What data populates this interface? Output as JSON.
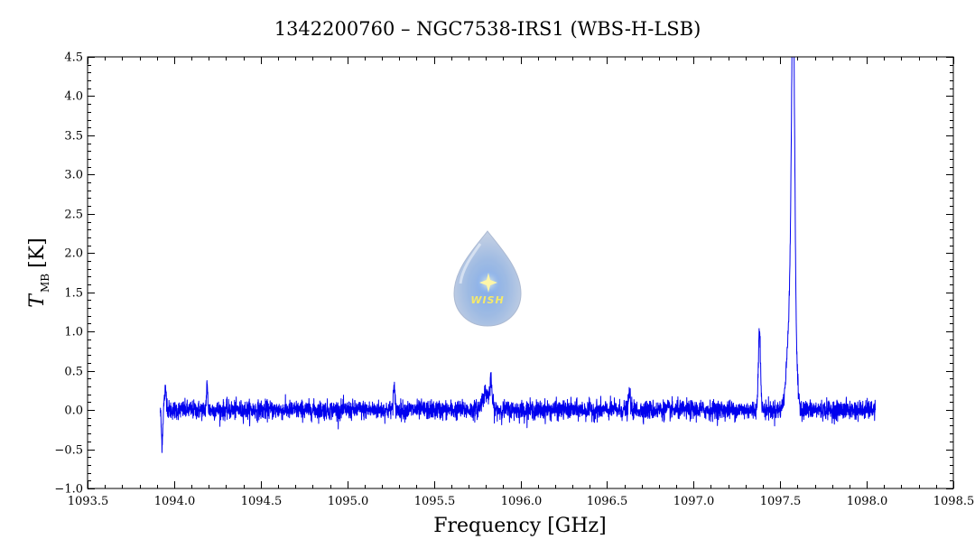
{
  "chart_data": {
    "type": "line",
    "title": "1342200760 – NGC7538-IRS1 (WBS-H-LSB)",
    "xlabel": "Frequency [GHz]",
    "ylabel": {
      "symbol": "T",
      "subscript": "MB",
      "unit": "[K]"
    },
    "xlim": [
      1093.5,
      1098.5
    ],
    "ylim": [
      -1.0,
      4.5
    ],
    "xticks": [
      "1093.5",
      "1094.0",
      "1094.5",
      "1095.0",
      "1095.5",
      "1096.0",
      "1096.5",
      "1097.0",
      "1097.5",
      "1098.0",
      "1098.5"
    ],
    "yticks": [
      "−1.0",
      "−0.5",
      "0.0",
      "0.5",
      "1.0",
      "1.5",
      "2.0",
      "2.5",
      "3.0",
      "3.5",
      "4.0",
      "4.5"
    ],
    "grid": false,
    "series": [
      {
        "color": "#0000ee",
        "x_range": [
          1093.92,
          1098.05
        ],
        "baseline": 0.0,
        "noise_rms": 0.06,
        "features": [
          {
            "center": 1093.93,
            "peak": -0.42,
            "width": 0.004
          },
          {
            "center": 1093.95,
            "peak": 0.25,
            "width": 0.006
          },
          {
            "center": 1094.19,
            "peak": 0.3,
            "width": 0.004
          },
          {
            "center": 1095.27,
            "peak": 0.27,
            "width": 0.005
          },
          {
            "center": 1095.8,
            "peak": 0.22,
            "width": 0.02
          },
          {
            "center": 1095.83,
            "peak": 0.28,
            "width": 0.006
          },
          {
            "center": 1096.63,
            "peak": 0.22,
            "width": 0.005
          },
          {
            "center": 1097.38,
            "peak": 1.06,
            "width": 0.006
          },
          {
            "center": 1097.575,
            "peak": 3.87,
            "width": 0.009
          },
          {
            "center": 1097.565,
            "peak": 1.6,
            "width": 0.02
          }
        ]
      }
    ],
    "watermark": {
      "text": "WISH",
      "icon": "water-drop-logo-icon",
      "accent": "#f5e96a"
    }
  }
}
